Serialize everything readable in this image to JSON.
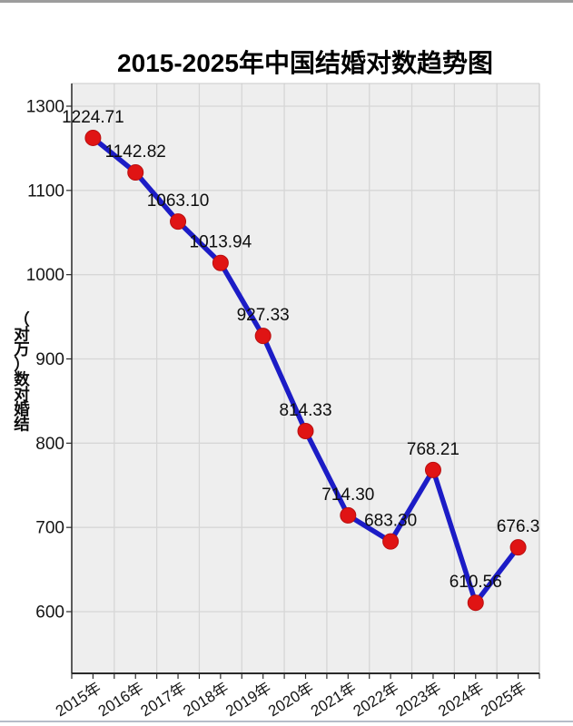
{
  "window": {
    "top_bar_color": "#9c9c9c",
    "bottom_divider_color": "#b6bcc8"
  },
  "chart_data": {
    "type": "line",
    "title": "2015-2025年中国结婚对数趋势图",
    "categories": [
      "2015年",
      "2016年",
      "2017年",
      "2018年",
      "2019年",
      "2020年",
      "2021年",
      "2022年",
      "2023年",
      "2024年",
      "2025年"
    ],
    "values": [
      1224.71,
      1142.82,
      1063.1,
      1013.94,
      927.33,
      814.33,
      714.3,
      683.3,
      768.21,
      610.56,
      676.3
    ],
    "point_labels": [
      "1224.71",
      "1142.82",
      "1063.10",
      "1013.94",
      "927.33",
      "814.33",
      "714.30",
      "683.30",
      "768.21",
      "610.56",
      "676.3"
    ],
    "y_ticks": [
      1300,
      1100,
      1000,
      900,
      800,
      700,
      600
    ],
    "y_tick_labels": [
      "1300",
      "1100",
      "1000",
      "900",
      "800",
      "700",
      "600"
    ],
    "ylabel_vertical_chars": [
      "（",
      "对",
      "万",
      "）",
      "数",
      "对",
      "婚",
      "结"
    ],
    "x_tick_rotation_deg": -32,
    "grid": true,
    "legend": false,
    "marker": "circle",
    "colors": {
      "line": "#1c1cc6",
      "marker_fill": "#e01414",
      "marker_edge": "#b80f0f",
      "plot_bg": "#eeeeee",
      "grid": "#d6d6d6",
      "axis_dark": "#2a2a2a",
      "spine_light": "#c9c9c9",
      "text": "#0d0d0d",
      "tick_text": "#151515"
    }
  }
}
